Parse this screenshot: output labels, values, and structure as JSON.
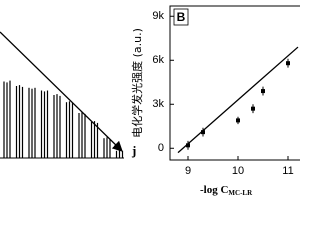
{
  "chart_data": [
    {
      "type": "spikes",
      "annotation": "j",
      "color": "#000000",
      "values": [
        85,
        84,
        86,
        80,
        81,
        79,
        78,
        77,
        78,
        75,
        74,
        75,
        70,
        71,
        69,
        62,
        63,
        61,
        50,
        51,
        49,
        40,
        41,
        39,
        22,
        23,
        21,
        8,
        9,
        8
      ],
      "ylim": [
        0,
        100
      ]
    },
    {
      "type": "scatter",
      "panel_label": "B",
      "color": "#000000",
      "ylabel": "电化学发光强度 (a.u.)",
      "xlabel": "-log C",
      "xlabel_sub": "MC-LR",
      "x": [
        9,
        9.3,
        10,
        10.3,
        10.5,
        11
      ],
      "values": [
        200,
        1100,
        1900,
        2700,
        3900,
        5800
      ],
      "errors": [
        300,
        300,
        250,
        300,
        300,
        300
      ],
      "fit": {
        "x": [
          8.8,
          11.2
        ],
        "values": [
          -300,
          6900
        ]
      },
      "xlim": [
        8.64,
        11.24
      ],
      "ylim": [
        -800,
        9700
      ],
      "xticks": [
        9,
        10,
        11
      ],
      "yticks": [
        {
          "value": 0,
          "label": "0"
        },
        {
          "value": 3000,
          "label": "3k"
        },
        {
          "value": 6000,
          "label": "6k"
        },
        {
          "value": 9000,
          "label": "9k"
        }
      ]
    }
  ]
}
